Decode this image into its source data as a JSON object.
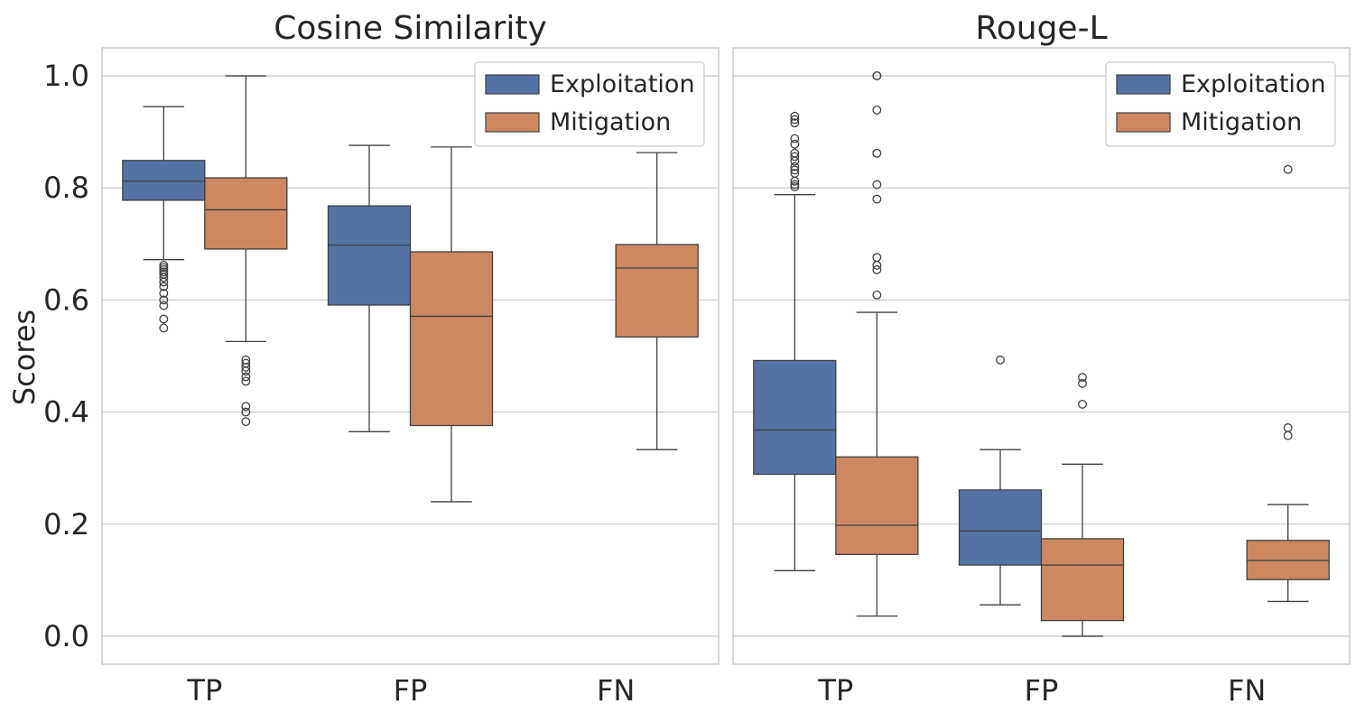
{
  "chart_data": {
    "type": "box",
    "ylabel": "Scores",
    "ylim": [
      -0.05,
      1.05
    ],
    "yticks": [
      "0.0",
      "0.2",
      "0.4",
      "0.6",
      "0.8",
      "1.0"
    ],
    "categories": [
      "TP",
      "FP",
      "FN"
    ],
    "grid": true,
    "legend": {
      "placement": "top-right",
      "entries": [
        {
          "name": "Exploitation",
          "color": "#5572a5"
        },
        {
          "name": "Mitigation",
          "color": "#cd8862"
        }
      ]
    },
    "panels": [
      {
        "title": "Cosine Similarity",
        "boxes": [
          {
            "category": "TP",
            "series": "Exploitation",
            "whislo": 0.672,
            "q1": 0.778,
            "median": 0.812,
            "q3": 0.849,
            "whishi": 0.945,
            "fliers": [
              0.662,
              0.658,
              0.654,
              0.65,
              0.646,
              0.64,
              0.632,
              0.624,
              0.612,
              0.6,
              0.59,
              0.566,
              0.55
            ]
          },
          {
            "category": "TP",
            "series": "Mitigation",
            "whislo": 0.526,
            "q1": 0.691,
            "median": 0.761,
            "q3": 0.818,
            "whishi": 1.0,
            "fliers": [
              0.493,
              0.487,
              0.48,
              0.473,
              0.463,
              0.455,
              0.41,
              0.4,
              0.383
            ]
          },
          {
            "category": "FP",
            "series": "Exploitation",
            "whislo": 0.365,
            "q1": 0.591,
            "median": 0.698,
            "q3": 0.768,
            "whishi": 0.876,
            "fliers": []
          },
          {
            "category": "FP",
            "series": "Mitigation",
            "whislo": 0.24,
            "q1": 0.376,
            "median": 0.571,
            "q3": 0.686,
            "whishi": 0.873,
            "fliers": []
          },
          {
            "category": "FN",
            "series": "Mitigation",
            "whislo": 0.333,
            "q1": 0.534,
            "median": 0.657,
            "q3": 0.699,
            "whishi": 0.863,
            "fliers": []
          }
        ]
      },
      {
        "title": "Rouge-L",
        "boxes": [
          {
            "category": "TP",
            "series": "Exploitation",
            "whislo": 0.117,
            "q1": 0.289,
            "median": 0.368,
            "q3": 0.492,
            "whishi": 0.788,
            "fliers": [
              0.928,
              0.922,
              0.916,
              0.888,
              0.878,
              0.862,
              0.856,
              0.848,
              0.838,
              0.832,
              0.826,
              0.812,
              0.806,
              0.802
            ]
          },
          {
            "category": "TP",
            "series": "Mitigation",
            "whislo": 0.036,
            "q1": 0.146,
            "median": 0.198,
            "q3": 0.32,
            "whishi": 0.578,
            "fliers": [
              1.0,
              1.0,
              0.939,
              0.862,
              0.806,
              0.78,
              0.676,
              0.662,
              0.654,
              0.609
            ]
          },
          {
            "category": "FP",
            "series": "Exploitation",
            "whislo": 0.056,
            "q1": 0.127,
            "median": 0.188,
            "q3": 0.261,
            "whishi": 0.333,
            "fliers": [
              0.493
            ]
          },
          {
            "category": "FP",
            "series": "Mitigation",
            "whislo": 0.0,
            "q1": 0.028,
            "median": 0.127,
            "q3": 0.174,
            "whishi": 0.307,
            "fliers": [
              0.462,
              0.451,
              0.414
            ]
          },
          {
            "category": "FN",
            "series": "Mitigation",
            "whislo": 0.062,
            "q1": 0.101,
            "median": 0.135,
            "q3": 0.171,
            "whishi": 0.235,
            "fliers": [
              0.833,
              0.372,
              0.358
            ]
          }
        ]
      }
    ]
  }
}
